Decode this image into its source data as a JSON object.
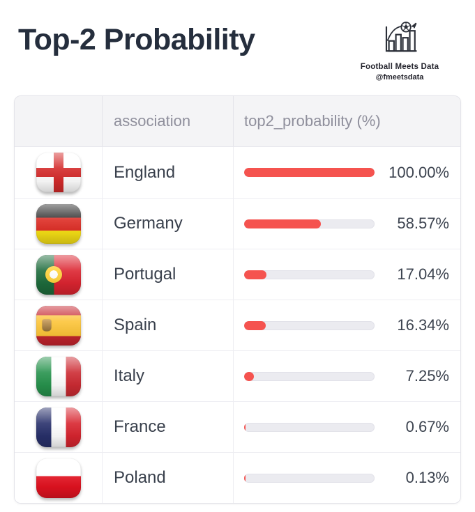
{
  "page": {
    "title": "Top-2 Probability",
    "brand": {
      "name": "Football Meets Data",
      "handle": "@fmeetsdata",
      "icon": "bar-chart-football-icon"
    }
  },
  "table": {
    "columns": {
      "flag": "",
      "association": "association",
      "probability": "top2_probability (%)"
    },
    "rows": [
      {
        "association": "England",
        "flag": "england-flag",
        "value": 100.0,
        "label": "100.00%"
      },
      {
        "association": "Germany",
        "flag": "germany-flag",
        "value": 58.57,
        "label": "58.57%"
      },
      {
        "association": "Portugal",
        "flag": "portugal-flag",
        "value": 17.04,
        "label": "17.04%"
      },
      {
        "association": "Spain",
        "flag": "spain-flag",
        "value": 16.34,
        "label": "16.34%"
      },
      {
        "association": "Italy",
        "flag": "italy-flag",
        "value": 7.25,
        "label": "7.25%"
      },
      {
        "association": "France",
        "flag": "france-flag",
        "value": 0.67,
        "label": "0.67%"
      },
      {
        "association": "Poland",
        "flag": "poland-flag",
        "value": 0.13,
        "label": "0.13%"
      }
    ]
  },
  "colors": {
    "bar_fill": "#f5534f",
    "bar_track": "#ebebf0",
    "title_text": "#252e3d",
    "header_bg": "#f4f4f6",
    "header_text": "#8f8f9c"
  },
  "chart_data": {
    "type": "bar",
    "title": "Top-2 Probability",
    "categories": [
      "England",
      "Germany",
      "Portugal",
      "Spain",
      "Italy",
      "France",
      "Poland"
    ],
    "values": [
      100.0,
      58.57,
      17.04,
      16.34,
      7.25,
      0.67,
      0.13
    ],
    "xlabel": "association",
    "ylabel": "top2_probability (%)",
    "value_range": [
      0,
      100
    ],
    "orientation": "horizontal",
    "grid": false,
    "legend": false
  }
}
